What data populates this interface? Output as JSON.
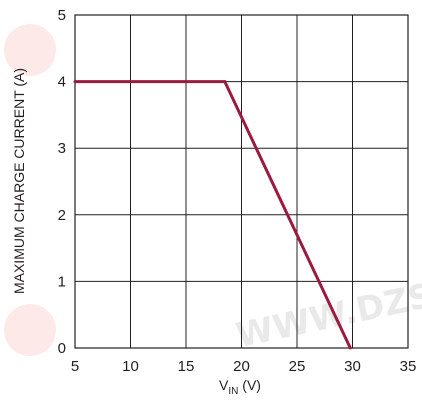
{
  "chart_data": {
    "type": "line",
    "title": "",
    "xlabel": {
      "main": "V",
      "subscript": "IN",
      "unit": " (V)"
    },
    "ylabel": "MAXIMUM CHARGE CURRENT (A)",
    "xlim": [
      5,
      35
    ],
    "ylim": [
      0,
      5
    ],
    "x_ticks": [
      5,
      10,
      15,
      20,
      25,
      30,
      35
    ],
    "y_ticks": [
      0,
      1,
      2,
      3,
      4,
      5
    ],
    "x_tick_labels": [
      "5",
      "10",
      "15",
      "20",
      "25",
      "30",
      "35"
    ],
    "y_tick_labels": [
      "0",
      "1",
      "2",
      "3",
      "4",
      "5"
    ],
    "grid": true,
    "series": [
      {
        "x": [
          5,
          18.5,
          29.8
        ],
        "y": [
          4,
          4,
          0
        ],
        "color": "#9b1b3f"
      }
    ]
  },
  "watermark": {
    "text": "WWW.DZSC.COM"
  }
}
